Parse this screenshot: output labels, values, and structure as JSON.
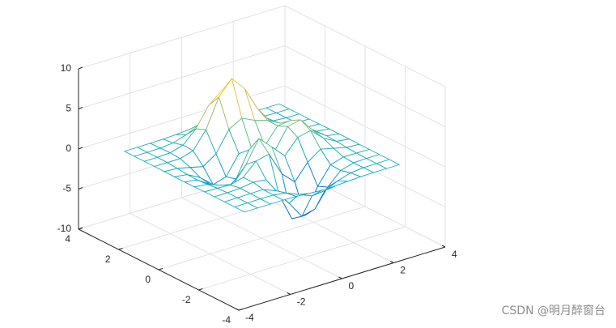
{
  "chart_data": {
    "type": "mesh",
    "x": [
      -3,
      -2.5,
      -2,
      -1.5,
      -1,
      -0.5,
      0,
      0.5,
      1,
      1.5,
      2,
      2.5,
      3
    ],
    "y": [
      -3,
      -2.5,
      -2,
      -1.5,
      -1,
      -0.5,
      0,
      0.5,
      1,
      1.5,
      2,
      2.5,
      3
    ],
    "z": [
      [
        0,
        0,
        0,
        0,
        -0.03,
        -0.14,
        -0.24,
        -0.22,
        -0.11,
        -0.03,
        -0.01,
        0,
        0
      ],
      [
        0,
        0,
        0.02,
        0,
        -0.23,
        -0.91,
        -1.57,
        -1.41,
        -0.69,
        -0.18,
        -0.03,
        0,
        0
      ],
      [
        0,
        0.01,
        0.05,
        0.05,
        -0.59,
        -2.63,
        -4.75,
        -4.34,
        -2.1,
        -0.53,
        -0.06,
        0,
        0
      ],
      [
        0,
        0.01,
        0.08,
        0.33,
        0.15,
        -2.19,
        -5.68,
        -5.76,
        -2.63,
        -0.44,
        0.04,
        0.03,
        0
      ],
      [
        -0.01,
        -0.06,
        -0.13,
        0.3,
        1.86,
        2.22,
        -0.72,
        -2.22,
        -0.27,
        0.88,
        0.5,
        0.11,
        0.01
      ],
      [
        -0.03,
        -0.2,
        -0.8,
        -1.21,
        0.8,
        3.55,
        2,
        0.39,
        2.2,
        2.56,
        1.12,
        0.24,
        0.03
      ],
      [
        -0.04,
        -0.3,
        -1.33,
        -2.77,
        -1.65,
        1.48,
        0.98,
        0.38,
        2.94,
        3.27,
        1.41,
        0.3,
        0.03
      ],
      [
        -0.03,
        -0.25,
        -1.12,
        -2.49,
        -2,
        0.39,
        0.46,
        0.38,
        2.38,
        2.56,
        1.09,
        0.23,
        0.03
      ],
      [
        -0.01,
        -0.11,
        -0.48,
        -0.86,
        0.23,
        2.79,
        3.69,
        2.93,
        2.43,
        1.58,
        0.58,
        0.11,
        0.01
      ],
      [
        0,
        -0.02,
        -0.01,
        0.48,
        2.61,
        6.2,
        8,
        6.25,
        3.25,
        1.18,
        0.29,
        0.05,
        0
      ],
      [
        0,
        0.01,
        0.08,
        0.55,
        2.09,
        4.55,
        5.85,
        4.56,
        2.21,
        0.68,
        0.13,
        0.02,
        0
      ],
      [
        0,
        0,
        0.03,
        0.19,
        0.69,
        1.47,
        1.88,
        1.47,
        0.7,
        0.21,
        0.04,
        0,
        0
      ],
      [
        0,
        0,
        0.01,
        0.03,
        0.11,
        0.23,
        0.3,
        0.23,
        0.11,
        0.03,
        0.01,
        0,
        0
      ]
    ],
    "xlim": [
      -4,
      4
    ],
    "ylim": [
      -4,
      4
    ],
    "zlim": [
      -10,
      10
    ],
    "xticks": [
      -4,
      -2,
      0,
      2,
      4
    ],
    "yticks": [
      -4,
      -2,
      0,
      2,
      4
    ],
    "zticks": [
      -10,
      -5,
      0,
      5,
      10
    ],
    "grid": true,
    "colormap": [
      "#352a87",
      "#0363e1",
      "#1485d4",
      "#06a7c6",
      "#38b99e",
      "#92bf73",
      "#d9ba56",
      "#fcce2e",
      "#f9fb0e"
    ]
  },
  "watermark": "CSDN @明月醉窗台"
}
